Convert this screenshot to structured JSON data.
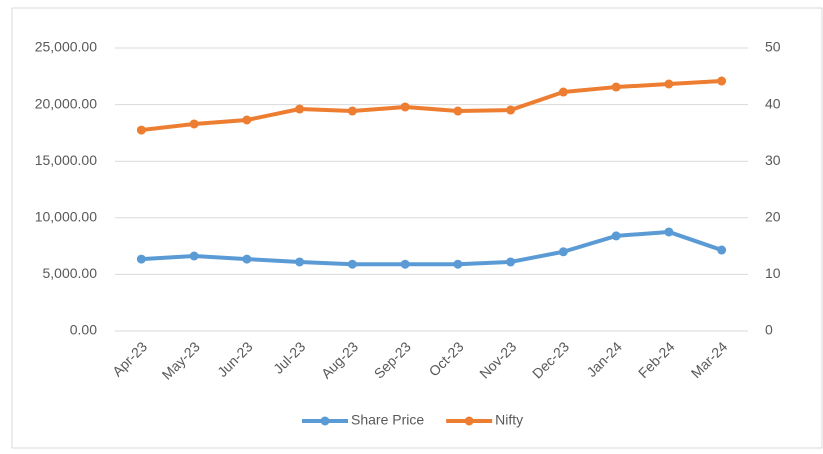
{
  "chart_data": {
    "type": "line",
    "categories": [
      "Apr-23",
      "May-23",
      "Jun-23",
      "Jul-23",
      "Aug-23",
      "Sep-23",
      "Oct-23",
      "Nov-23",
      "Dec-23",
      "Jan-24",
      "Feb-24",
      "Mar-24"
    ],
    "series": [
      {
        "name": "Share Price",
        "color": "#5b9bd5",
        "axis": "y2",
        "values": [
          12.7,
          13.25,
          12.7,
          12.2,
          11.8,
          11.8,
          11.8,
          12.2,
          14.0,
          16.8,
          17.5,
          14.3
        ]
      },
      {
        "name": "Nifty",
        "color": "#ed7d31",
        "values": [
          17750,
          18290,
          18640,
          19610,
          19430,
          19790,
          19430,
          19520,
          21110,
          21550,
          21820,
          22080
        ]
      }
    ],
    "ylim": [
      0,
      25000
    ],
    "yticks": [
      {
        "value": 0,
        "label": "0.00"
      },
      {
        "value": 5000,
        "label": "5,000.00"
      },
      {
        "value": 10000,
        "label": "10,000.00"
      },
      {
        "value": 15000,
        "label": "15,000.00"
      },
      {
        "value": 20000,
        "label": "20,000.00"
      },
      {
        "value": 25000,
        "label": "25,000.00"
      }
    ],
    "y2lim": [
      0,
      50
    ],
    "y2ticks": [
      0,
      10,
      20,
      30,
      40,
      50
    ],
    "grid": true,
    "legend": "bottom"
  }
}
